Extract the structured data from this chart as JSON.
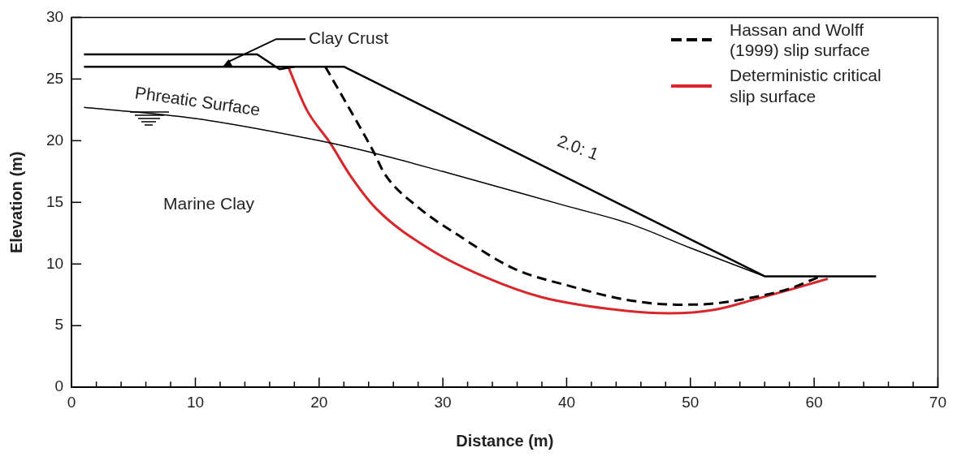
{
  "chart_data": {
    "type": "line",
    "xlabel": "Distance (m)",
    "ylabel": "Elevation (m)",
    "xlim": [
      0,
      70
    ],
    "ylim": [
      0,
      30
    ],
    "xticks": [
      0,
      {
        "value": 2,
        "label": null
      },
      {
        "value": 4,
        "label": null
      },
      {
        "value": 6,
        "label": null
      },
      {
        "value": 8,
        "label": null
      },
      10,
      {
        "value": 12,
        "label": null
      },
      {
        "value": 14,
        "label": null
      },
      {
        "value": 16,
        "label": null
      },
      {
        "value": 18,
        "label": null
      },
      20,
      {
        "value": 22,
        "label": null
      },
      {
        "value": 24,
        "label": null
      },
      {
        "value": 26,
        "label": null
      },
      {
        "value": 28,
        "label": null
      },
      30,
      {
        "value": 32,
        "label": null
      },
      {
        "value": 34,
        "label": null
      },
      {
        "value": 36,
        "label": null
      },
      {
        "value": 38,
        "label": null
      },
      40,
      {
        "value": 42,
        "label": null
      },
      {
        "value": 44,
        "label": null
      },
      {
        "value": 46,
        "label": null
      },
      {
        "value": 48,
        "label": null
      },
      50,
      {
        "value": 52,
        "label": null
      },
      {
        "value": 54,
        "label": null
      },
      {
        "value": 56,
        "label": null
      },
      {
        "value": 58,
        "label": null
      },
      60,
      {
        "value": 62,
        "label": null
      },
      {
        "value": 64,
        "label": null
      },
      {
        "value": 66,
        "label": null
      },
      {
        "value": 68,
        "label": null
      },
      70
    ],
    "yticks": [
      0,
      5,
      10,
      15,
      20,
      25,
      30
    ],
    "grid": false,
    "legend": "top right",
    "marker": "none",
    "series": [
      {
        "color": "#000000",
        "x": [
          1,
          22,
          56,
          65
        ],
        "values": [
          26,
          26,
          9,
          9
        ]
      },
      {
        "color": "#000000",
        "x": [
          1,
          15,
          16.8,
          18
        ],
        "values": [
          27,
          27,
          25.8,
          26
        ]
      },
      {
        "color": "#000000",
        "x": [
          1,
          10,
          20,
          24.4,
          30,
          40,
          45,
          50,
          56
        ],
        "values": [
          22.7,
          21.8,
          20,
          19,
          17.5,
          14.7,
          13.3,
          11.3,
          9
        ]
      },
      {
        "name": "Hassan and Wolff (1999) slip surface",
        "color": "#000000",
        "line_style": "dashed",
        "x": [
          20.5,
          22.5,
          24.4,
          25.3,
          28,
          31.3,
          35.8,
          40.3,
          44.8,
          49,
          52,
          55.1,
          58,
          60.5
        ],
        "values": [
          26,
          22.5,
          19.1,
          17.3,
          14.6,
          12.3,
          9.6,
          8.2,
          7.1,
          6.7,
          6.8,
          7.3,
          8,
          9
        ]
      },
      {
        "name": "Deterministic critical slip surface",
        "color": "#d9262b",
        "x": [
          17.5,
          19,
          20.9,
          22.5,
          24.6,
          29.1,
          33.5,
          38,
          44.8,
          48.3,
          52,
          55.1,
          58,
          61.1
        ],
        "values": [
          26,
          22.5,
          19.8,
          17.2,
          14.5,
          11.1,
          8.9,
          7.3,
          6.2,
          6,
          6.3,
          7.1,
          7.9,
          8.8
        ]
      }
    ],
    "annotations": [
      {
        "text": "Clay Crust",
        "x": 12.2,
        "y": 26
      },
      "Phreatic Surface",
      "2.0: 1",
      "Marine Clay"
    ]
  }
}
